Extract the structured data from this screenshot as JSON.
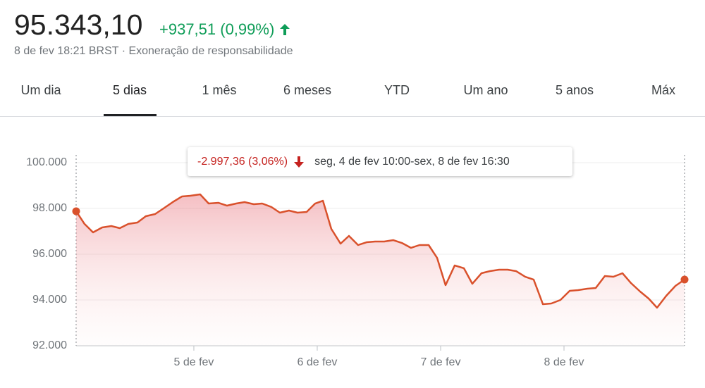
{
  "header": {
    "price": "95.343,10",
    "change": "+937,51 (0,99%)",
    "subtitle": "8 de fev 18:21 BRST · Exoneração de responsabilidade"
  },
  "tabs": {
    "items": [
      "Um dia",
      "5 dias",
      "1 mês",
      "6 meses",
      "YTD",
      "Um ano",
      "5 anos",
      "Máx"
    ],
    "selected": 1
  },
  "chart_data": {
    "type": "line",
    "color": "#d9512c",
    "grid": true,
    "annotation": {
      "change": "-2.997,36 (3,06%)",
      "period": "seg, 4 de fev 10:00-sex, 8 de fev 16:30"
    },
    "xlim": [
      4.046,
      8.977
    ],
    "xticks": [
      {
        "value": 5,
        "label": "5 de fev"
      },
      {
        "value": 6,
        "label": "6 de fev"
      },
      {
        "value": 7,
        "label": "7 de fev"
      },
      {
        "value": 8,
        "label": "8 de fev"
      }
    ],
    "ylim": [
      92000,
      100000
    ],
    "yticks": [
      {
        "value": 92000,
        "label": "92.000"
      },
      {
        "value": 94000,
        "label": "94.000"
      },
      {
        "value": 96000,
        "label": "96.000"
      },
      {
        "value": 98000,
        "label": "98.000"
      },
      {
        "value": 100000,
        "label": "100.000"
      }
    ],
    "x": [
      4.046,
      4.114,
      4.183,
      4.257,
      4.331,
      4.4,
      4.469,
      4.543,
      4.611,
      4.686,
      4.754,
      4.829,
      4.903,
      4.971,
      5.051,
      5.12,
      5.2,
      5.269,
      5.343,
      5.411,
      5.486,
      5.554,
      5.629,
      5.697,
      5.771,
      5.84,
      5.914,
      5.983,
      6.046,
      6.114,
      6.189,
      6.257,
      6.331,
      6.4,
      6.469,
      6.543,
      6.617,
      6.686,
      6.76,
      6.829,
      6.903,
      6.971,
      7.04,
      7.114,
      7.189,
      7.257,
      7.331,
      7.4,
      7.474,
      7.543,
      7.611,
      7.686,
      7.754,
      7.829,
      7.897,
      7.971,
      8.046,
      8.114,
      8.189,
      8.257,
      8.331,
      8.4,
      8.474,
      8.543,
      8.617,
      8.686,
      8.754,
      8.829,
      8.903,
      8.977
    ],
    "values": [
      97877,
      97323,
      96954,
      97169,
      97231,
      97138,
      97323,
      97385,
      97662,
      97754,
      98000,
      98277,
      98523,
      98554,
      98615,
      98215,
      98246,
      98123,
      98215,
      98277,
      98185,
      98215,
      98062,
      97815,
      97908,
      97815,
      97846,
      98215,
      98338,
      97108,
      96462,
      96800,
      96400,
      96523,
      96554,
      96554,
      96615,
      96492,
      96277,
      96400,
      96400,
      95846,
      94646,
      95508,
      95385,
      94708,
      95169,
      95262,
      95323,
      95323,
      95262,
      95015,
      94892,
      93815,
      93846,
      94000,
      94400,
      94431,
      94492,
      94523,
      95046,
      95015,
      95169,
      94738,
      94369,
      94062,
      93662,
      94185,
      94615,
      94892
    ]
  }
}
